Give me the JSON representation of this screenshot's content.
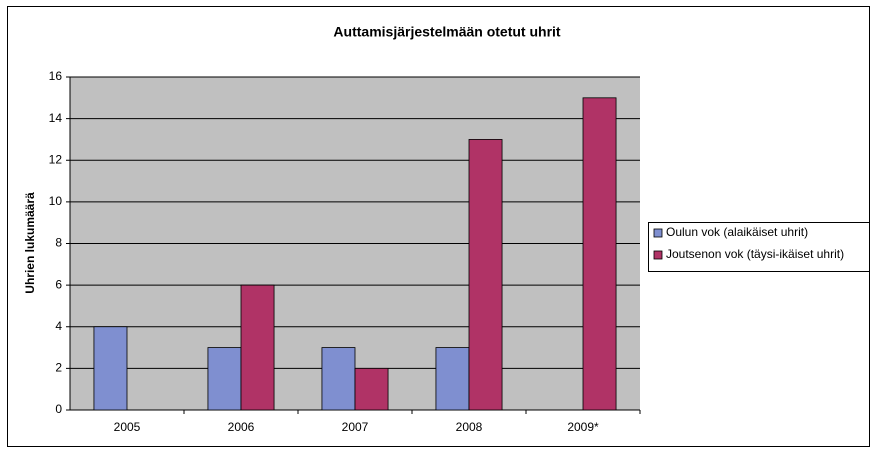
{
  "chart_data": {
    "type": "bar",
    "title": "Auttamisjärjestelmään otetut uhrit",
    "y_label": "Uhrien lukumäärä",
    "categories": [
      "2005",
      "2006",
      "2007",
      "2008",
      "2009*"
    ],
    "series": [
      {
        "name": "Oulun vok (alaikäiset uhrit)",
        "color": "#7f8fd0",
        "values": [
          4,
          3,
          3,
          3,
          null
        ]
      },
      {
        "name": "Joutsenon vok (täysi-ikäiset uhrit)",
        "color": "#b03366",
        "values": [
          null,
          6,
          2,
          13,
          15
        ]
      }
    ],
    "ylim": [
      0,
      16
    ],
    "yticks": [
      0,
      2,
      4,
      6,
      8,
      10,
      12,
      14,
      16
    ],
    "grid": true,
    "legend": "right"
  }
}
